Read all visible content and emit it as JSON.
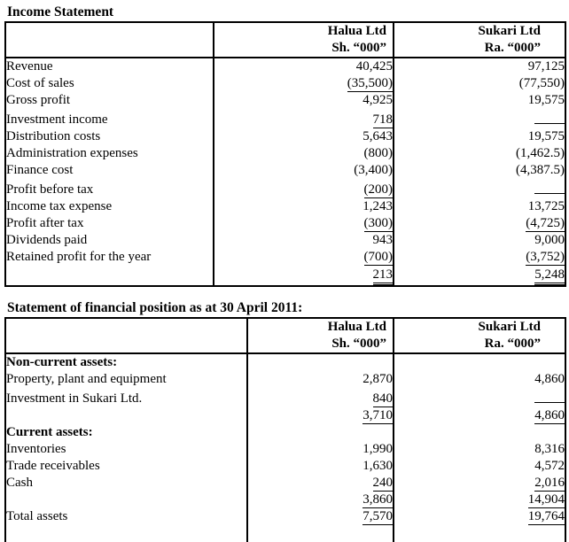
{
  "income_statement": {
    "title": "Income Statement",
    "columns": [
      {
        "company": "Halua Ltd",
        "currency": "Sh. “000”"
      },
      {
        "company": "Sukari Ltd",
        "currency": "Ra. “000”"
      }
    ],
    "rows": [
      {
        "label": "Revenue",
        "halua": "40,425",
        "sukari": "97,125"
      },
      {
        "label": "Cost of sales",
        "halua": "(35,500)",
        "sukari": "(77,550)"
      },
      {
        "label": "Gross profit",
        "halua": "4,925",
        "sukari": "19,575"
      },
      {
        "label": "Investment income",
        "halua": "718",
        "sukari": ""
      },
      {
        "label": "Distribution costs",
        "halua": "5,643",
        "sukari": "19,575"
      },
      {
        "label": "Administration expenses",
        "halua": "(800)",
        "sukari": "(1,462.5)"
      },
      {
        "label": "Finance cost",
        "halua": "(3,400)",
        "sukari": "(4,387.5)"
      },
      {
        "label": "Profit before tax",
        "halua": "(200)",
        "sukari": ""
      },
      {
        "label": "Income tax expense",
        "halua": "1,243",
        "sukari": "13,725"
      },
      {
        "label": "Profit after tax",
        "halua": "(300)",
        "sukari": "(4,725)"
      },
      {
        "label": "Dividends paid",
        "halua": "943",
        "sukari": "9,000"
      },
      {
        "label": "Retained profit for the year",
        "halua": "(700)",
        "sukari": "(3,752)"
      },
      {
        "label": "",
        "halua": "213",
        "sukari": "5,248"
      }
    ]
  },
  "financial_position": {
    "title": "Statement of financial position as at 30 April 2011:",
    "columns": [
      {
        "company": "Halua Ltd",
        "currency": "Sh. “000”"
      },
      {
        "company": "Sukari Ltd",
        "currency": "Ra. “000”"
      }
    ],
    "rows": [
      {
        "label": "Non-current assets:",
        "halua": "",
        "sukari": ""
      },
      {
        "label": "Property, plant and equipment",
        "halua": "2,870",
        "sukari": "4,860"
      },
      {
        "label": "Investment in Sukari Ltd.",
        "halua": "840",
        "sukari": ""
      },
      {
        "label": "",
        "halua": "3,710",
        "sukari": "4,860"
      },
      {
        "label": "Current assets:",
        "halua": "",
        "sukari": ""
      },
      {
        "label": "Inventories",
        "halua": "1,990",
        "sukari": "8,316"
      },
      {
        "label": "Trade receivables",
        "halua": "1,630",
        "sukari": "4,572"
      },
      {
        "label": "Cash",
        "halua": "240",
        "sukari": "2,016"
      },
      {
        "label": "",
        "halua": "3,860",
        "sukari": "14,904"
      },
      {
        "label": "Total assets",
        "halua": "7,570",
        "sukari": "19,764"
      },
      {
        "label": "",
        "halua": "",
        "sukari": ""
      }
    ]
  },
  "colors": {
    "text": "#000000",
    "background": "#ffffff",
    "border": "#000000"
  }
}
